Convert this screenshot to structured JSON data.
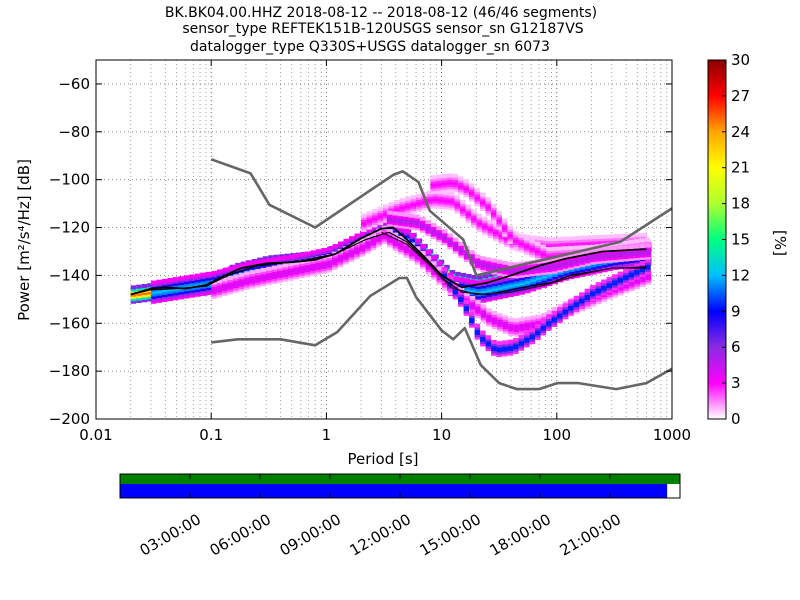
{
  "title": {
    "line1": "BK.BK04.00.HHZ   2018-08-12 -- 2018-08-12  (46/46 segments)",
    "line2": "sensor_type REFTEK151B-120USGS sensor_sn G12187VS",
    "line3": "datalogger_type Q330S+USGS datalogger_sn 6073"
  },
  "chart_data": {
    "type": "heatmap",
    "xlabel": "Period [s]",
    "ylabel": "Power [m²/s⁴/Hz] [dB]",
    "xscale": "log",
    "xlim": [
      0.01,
      1000
    ],
    "ylim": [
      -200,
      -50
    ],
    "x_ticks": [
      0.01,
      0.1,
      1,
      10,
      100,
      1000
    ],
    "x_tick_labels": [
      "0.01",
      "0.1",
      "1",
      "10",
      "100",
      "1000"
    ],
    "y_ticks": [
      -200,
      -180,
      -160,
      -140,
      -120,
      -100,
      -80,
      -60
    ],
    "y_tick_labels": [
      "−200",
      "−180",
      "−160",
      "−140",
      "−120",
      "−100",
      "−80",
      "−60"
    ],
    "grid": true,
    "colorbar": {
      "label": "[%]",
      "min": 0,
      "max": 30,
      "ticks": [
        0,
        3,
        6,
        9,
        12,
        15,
        18,
        21,
        24,
        27,
        30
      ],
      "tick_labels": [
        "0",
        "3",
        "6",
        "9",
        "12",
        "15",
        "18",
        "21",
        "24",
        "27",
        "30"
      ],
      "colormap": [
        "#ffffff",
        "#ff00ff",
        "#8a2be2",
        "#0000ff",
        "#00bfff",
        "#00ff80",
        "#adff2f",
        "#ffff00",
        "#ffa500",
        "#ff0000",
        "#8b0000"
      ]
    },
    "series": [
      {
        "kind": "noise-model-high",
        "points": [
          [
            0.1,
            -91.5
          ],
          [
            0.22,
            -97.4
          ],
          [
            0.32,
            -110.5
          ],
          [
            0.8,
            -120
          ],
          [
            3.8,
            -98
          ],
          [
            4.6,
            -96.5
          ],
          [
            6.3,
            -101
          ],
          [
            7.9,
            -113
          ],
          [
            15.4,
            -125
          ],
          [
            20,
            -140
          ],
          [
            354.8,
            -126
          ],
          [
            1000,
            -112
          ]
        ]
      },
      {
        "kind": "noise-model-low",
        "points": [
          [
            0.1,
            -168
          ],
          [
            0.17,
            -166.7
          ],
          [
            0.4,
            -166.7
          ],
          [
            0.8,
            -169.2
          ],
          [
            1.24,
            -163.7
          ],
          [
            2.4,
            -148.6
          ],
          [
            4.3,
            -141.1
          ],
          [
            5,
            -141.1
          ],
          [
            6,
            -149
          ],
          [
            10,
            -163
          ],
          [
            12.6,
            -166.7
          ],
          [
            15.9,
            -162
          ],
          [
            21.9,
            -177.5
          ],
          [
            31.6,
            -185
          ],
          [
            45,
            -187.5
          ],
          [
            70,
            -187.5
          ],
          [
            101,
            -185
          ],
          [
            154,
            -185
          ],
          [
            328,
            -187.5
          ],
          [
            600,
            -185
          ],
          [
            1000,
            -179
          ]
        ]
      },
      {
        "kind": "mode",
        "points": [
          [
            0.02,
            -148
          ],
          [
            0.03,
            -145.5
          ],
          [
            0.04,
            -145
          ],
          [
            0.06,
            -145.5
          ],
          [
            0.09,
            -144
          ],
          [
            0.12,
            -141
          ],
          [
            0.18,
            -137
          ],
          [
            0.3,
            -135
          ],
          [
            0.5,
            -134.5
          ],
          [
            0.8,
            -133.5
          ],
          [
            1.2,
            -131
          ],
          [
            2,
            -124.5
          ],
          [
            3,
            -120.5
          ],
          [
            3.8,
            -120
          ],
          [
            5,
            -125
          ],
          [
            7,
            -132
          ],
          [
            10,
            -140
          ],
          [
            15,
            -145
          ],
          [
            25,
            -143
          ],
          [
            40,
            -140
          ],
          [
            70,
            -136
          ],
          [
            120,
            -133
          ],
          [
            250,
            -130
          ],
          [
            600,
            -129
          ]
        ]
      },
      {
        "kind": "mean",
        "points": [
          [
            0.02,
            -148
          ],
          [
            0.03,
            -146
          ],
          [
            0.05,
            -145.5
          ],
          [
            0.09,
            -144.5
          ],
          [
            0.14,
            -140
          ],
          [
            0.25,
            -136
          ],
          [
            0.6,
            -134
          ],
          [
            1.2,
            -131
          ],
          [
            2.2,
            -125
          ],
          [
            3.5,
            -122
          ],
          [
            5,
            -126
          ],
          [
            7,
            -133
          ],
          [
            10,
            -141
          ],
          [
            15,
            -147
          ],
          [
            25,
            -148
          ],
          [
            50,
            -145
          ],
          [
            90,
            -143
          ],
          [
            130,
            -140
          ],
          [
            300,
            -137
          ],
          [
            600,
            -136.5
          ]
        ]
      },
      {
        "kind": "lower-percentile",
        "points": [
          [
            3,
            -122
          ],
          [
            5,
            -127
          ],
          [
            8,
            -136
          ],
          [
            12,
            -145
          ],
          [
            20,
            -148
          ],
          [
            40,
            -147
          ],
          [
            80,
            -144
          ],
          [
            150,
            -140
          ],
          [
            300,
            -137
          ],
          [
            600,
            -137
          ]
        ]
      }
    ],
    "density_bands": [
      {
        "points": [
          [
            0.02,
            -148
          ],
          [
            0.05,
            -145.5
          ],
          [
            0.09,
            -144.5
          ],
          [
            0.15,
            -139
          ],
          [
            0.3,
            -135.5
          ],
          [
            0.8,
            -133.5
          ],
          [
            1.5,
            -129
          ],
          [
            2.5,
            -122
          ],
          [
            3.5,
            -120
          ],
          [
            5,
            -124.5
          ],
          [
            8,
            -134
          ],
          [
            12,
            -142
          ],
          [
            20,
            -144
          ],
          [
            40,
            -140.5
          ],
          [
            80,
            -136.5
          ],
          [
            200,
            -132
          ],
          [
            600,
            -129
          ]
        ],
        "spread": 3,
        "percent": 25
      },
      {
        "points": [
          [
            0.03,
            -147
          ],
          [
            0.1,
            -143
          ],
          [
            0.2,
            -139
          ],
          [
            0.5,
            -136
          ],
          [
            1,
            -133
          ],
          [
            2,
            -126
          ],
          [
            3,
            -121.5
          ],
          [
            5,
            -126
          ],
          [
            8,
            -136
          ],
          [
            12,
            -145
          ],
          [
            20,
            -147
          ],
          [
            50,
            -143
          ],
          [
            120,
            -137
          ],
          [
            300,
            -133
          ],
          [
            600,
            -131
          ]
        ],
        "spread": 4,
        "percent": 12
      },
      {
        "points": [
          [
            0.1,
            -146
          ],
          [
            0.2,
            -142
          ],
          [
            0.5,
            -138
          ],
          [
            1,
            -135
          ],
          [
            2,
            -128
          ],
          [
            3,
            -123
          ],
          [
            6,
            -132
          ],
          [
            10,
            -142
          ],
          [
            15,
            -150
          ],
          [
            25,
            -158
          ],
          [
            40,
            -162
          ],
          [
            70,
            -160
          ],
          [
            130,
            -153
          ],
          [
            250,
            -147
          ],
          [
            600,
            -140
          ]
        ],
        "spread": 3,
        "percent": 4
      },
      {
        "points": [
          [
            2,
            -118
          ],
          [
            4,
            -112
          ],
          [
            8,
            -108
          ],
          [
            12,
            -109
          ],
          [
            20,
            -118
          ],
          [
            40,
            -126
          ],
          [
            80,
            -128
          ],
          [
            200,
            -127
          ],
          [
            600,
            -126
          ]
        ],
        "spread": 3,
        "percent": 3
      },
      {
        "points": [
          [
            8,
            -102
          ],
          [
            12,
            -101
          ],
          [
            16,
            -104
          ],
          [
            25,
            -112
          ],
          [
            40,
            -125
          ],
          [
            80,
            -132
          ],
          [
            200,
            -131
          ],
          [
            600,
            -128
          ]
        ],
        "spread": 3,
        "percent": 3
      },
      {
        "points": [
          [
            10,
            -140
          ],
          [
            15,
            -152
          ],
          [
            20,
            -165
          ],
          [
            28,
            -171
          ],
          [
            40,
            -170
          ],
          [
            60,
            -165
          ],
          [
            80,
            -160
          ],
          [
            120,
            -154
          ],
          [
            200,
            -147
          ],
          [
            400,
            -140
          ],
          [
            600,
            -136
          ]
        ],
        "spread": 2.5,
        "percent": 10
      },
      {
        "points": [
          [
            3,
            -116
          ],
          [
            6,
            -118
          ],
          [
            10,
            -124
          ],
          [
            20,
            -135
          ],
          [
            40,
            -138
          ],
          [
            90,
            -136
          ],
          [
            200,
            -132
          ],
          [
            600,
            -130
          ]
        ],
        "spread": 2.5,
        "percent": 5
      }
    ]
  },
  "timeline": {
    "colors": {
      "top": "#008000",
      "bottom": "#0000ff"
    },
    "coverage": 0.977,
    "tick_labels": [
      "03:00:00",
      "06:00:00",
      "09:00:00",
      "12:00:00",
      "15:00:00",
      "18:00:00",
      "21:00:00"
    ],
    "tick_hours": [
      3,
      6,
      9,
      12,
      15,
      18,
      21
    ]
  }
}
